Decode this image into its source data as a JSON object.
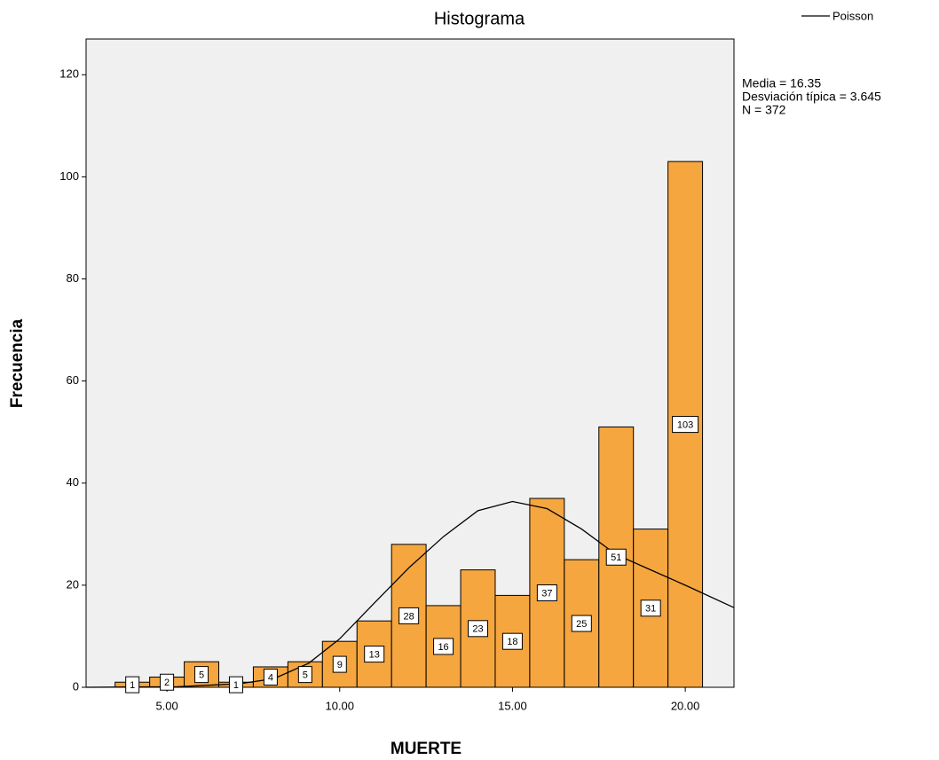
{
  "chart_data": {
    "type": "histogram",
    "title": "Histograma",
    "x_label": "MUERTE",
    "y_label": "Frecuencia",
    "annotations": [
      "Media = 16.35",
      "Desviación típica = 3.645",
      "N = 372"
    ],
    "bins": [
      3.5,
      4.5,
      5.5,
      6.5,
      7.5,
      8.5,
      9.5,
      10.5,
      11.5,
      12.5,
      13.5,
      14.5,
      15.5,
      16.5,
      17.5,
      18.5,
      19.5,
      20.5
    ],
    "values": [
      1,
      2,
      5,
      1,
      4,
      5,
      9,
      13,
      28,
      16,
      23,
      18,
      37,
      25,
      51,
      31,
      103
    ],
    "color": "#f5a030",
    "curve": {
      "name": "Poisson",
      "color": "#000000",
      "x": [
        2.66,
        5.3,
        7.1,
        8.1,
        9.1,
        10.0,
        11.0,
        12.0,
        13.0,
        14.0,
        15.0,
        16.0,
        17.0,
        18.0,
        19.0,
        20.0,
        21.41
      ],
      "values": [
        0,
        0.1,
        0.7,
        1.7,
        4.7,
        9.5,
        16.5,
        23.4,
        29.5,
        34.6,
        36.4,
        35,
        31,
        26,
        23,
        20,
        15.6
      ]
    },
    "xlim": [
      2.66,
      21.41
    ],
    "xticks": [
      {
        "value": 5,
        "label": "5.00"
      },
      {
        "value": 10,
        "label": "10.00"
      },
      {
        "value": 15,
        "label": "15.00"
      },
      {
        "value": 20,
        "label": "20.00"
      }
    ],
    "ylim": [
      0,
      127
    ],
    "yticks": [
      0,
      20,
      40,
      60,
      80,
      100,
      120
    ],
    "legend": "top-right",
    "plot_background": "#f0f0f0"
  }
}
